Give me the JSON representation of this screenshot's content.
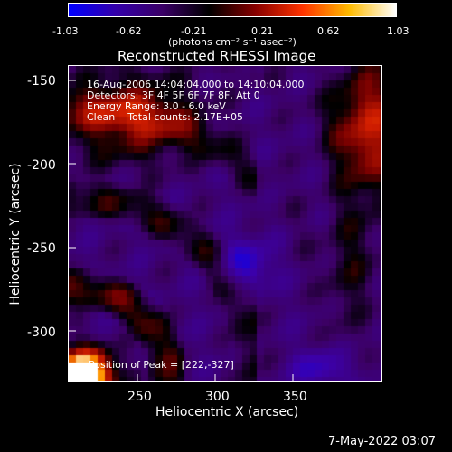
{
  "colorbar": {
    "tick_labels": [
      "-1.03",
      "-0.62",
      "-0.21",
      "0.21",
      "0.62",
      "1.03"
    ],
    "units": "(photons cm⁻² s⁻¹ asec⁻²)",
    "colors": [
      "#0000ff",
      "#3300aa",
      "#3a0066",
      "#000000",
      "#880000",
      "#ff3300",
      "#ffbb00",
      "#ffffff"
    ]
  },
  "title": "Reconstructed RHESSI Image",
  "info": {
    "time_range": "16-Aug-2006 14:04:04.000 to 14:10:04.000",
    "detectors": "Detectors: 3F 4F 5F 6F 7F 8F, Att 0",
    "energy": "Energy Range: 3.0 - 6.0 keV",
    "method": "Clean    Total counts: 2.17E+05"
  },
  "peak_label": "Position of Peak = [222,-327]",
  "footer_date": "7-May-2022 03:07",
  "chart_data": {
    "type": "heatmap",
    "title": "Reconstructed RHESSI Image",
    "xlabel": "Heliocentric X (arcsec)",
    "ylabel": "Heliocentric Y (arcsec)",
    "x_ticks": [
      "250",
      "300",
      "350"
    ],
    "x_tick_values": [
      250,
      300,
      350
    ],
    "y_ticks": [
      "-150",
      "-200",
      "-250",
      "-300"
    ],
    "y_tick_values": [
      -150,
      -200,
      -250,
      -300
    ],
    "xlim": [
      205,
      395
    ],
    "ylim": [
      -332,
      -140
    ],
    "colorbar_range": [
      -1.03,
      1.03
    ],
    "peak": [
      222,
      -327
    ]
  }
}
